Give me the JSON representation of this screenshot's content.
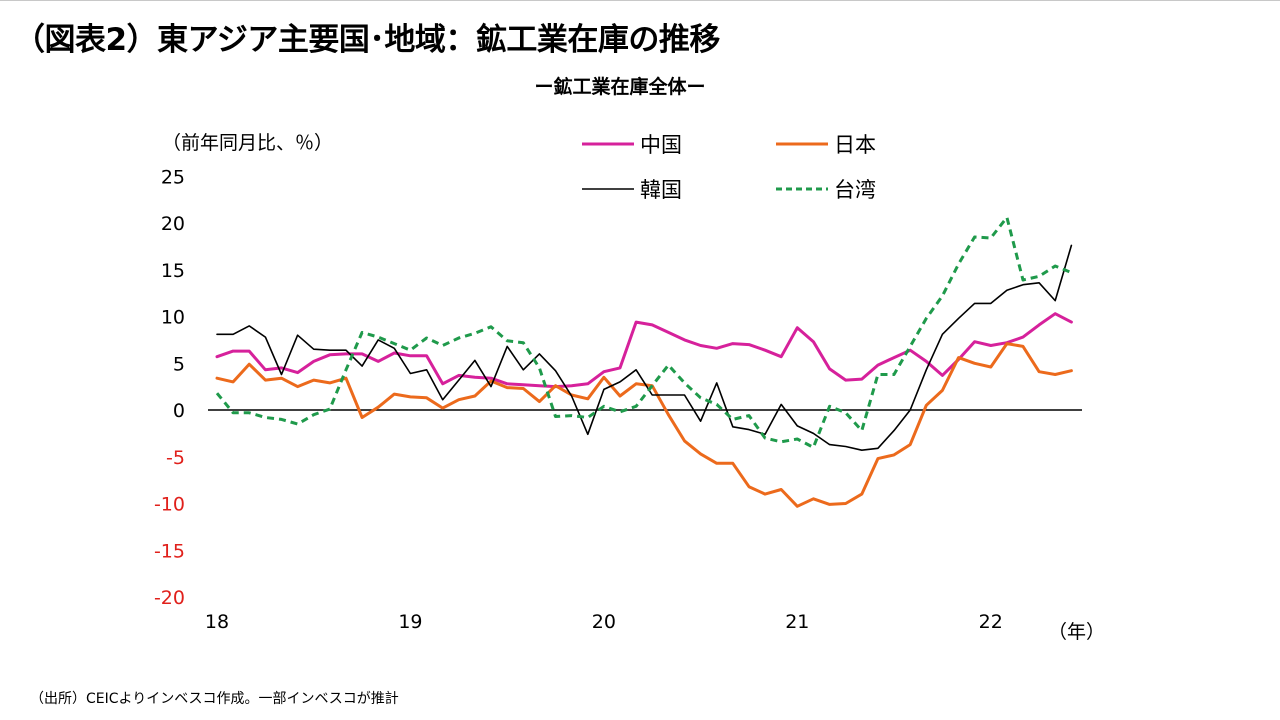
{
  "page": {
    "title": "（図表2）東アジア主要国･地域：鉱工業在庫の推移",
    "footnote": "（出所）CEICよりインベスコ作成。一部インベスコが推計"
  },
  "chart_data": {
    "type": "line",
    "subtitle": "ー鉱工業在庫全体ー",
    "ylabel": "（前年同月比、％）",
    "xlabel": "（年）",
    "ylim": [
      -20,
      25
    ],
    "yticks": [
      25,
      20,
      15,
      10,
      5,
      0,
      -5,
      -10,
      -15,
      -20
    ],
    "negative_tick_color": "#e0201b",
    "x_tick_labels": [
      "18",
      "19",
      "20",
      "21",
      "22"
    ],
    "x_months": "2018-01 to 2022-08 (monthly)",
    "grid": false,
    "legend_position": "top",
    "series": [
      {
        "name": "中国",
        "color": "#d6219b",
        "style": "solid",
        "values": [
          5.7,
          6.3,
          6.3,
          4.3,
          4.5,
          4.0,
          5.2,
          5.9,
          6.0,
          6.0,
          5.2,
          6.1,
          5.8,
          5.8,
          2.8,
          3.7,
          3.5,
          3.4,
          2.8,
          2.7,
          2.6,
          2.5,
          2.6,
          2.8,
          4.1,
          4.5,
          9.4,
          9.1,
          8.3,
          7.5,
          6.9,
          6.6,
          7.1,
          7.0,
          6.4,
          5.7,
          8.8,
          7.3,
          4.4,
          3.2,
          3.3,
          4.8,
          5.6,
          6.4,
          5.2,
          3.7,
          5.4,
          7.3,
          6.9,
          7.2,
          7.8,
          9.1,
          10.3,
          9.4,
          null,
          null
        ]
      },
      {
        "name": "日本",
        "color": "#ec6a1c",
        "style": "solid",
        "values": [
          3.4,
          3.0,
          4.9,
          3.2,
          3.4,
          2.5,
          3.2,
          2.9,
          3.4,
          -0.8,
          0.3,
          1.7,
          1.4,
          1.3,
          0.2,
          1.1,
          1.5,
          3.1,
          2.4,
          2.3,
          0.9,
          2.6,
          1.6,
          1.2,
          3.5,
          1.5,
          2.8,
          2.6,
          -0.5,
          -3.3,
          -4.7,
          -5.7,
          -5.7,
          -8.2,
          -9.0,
          -8.5,
          -10.3,
          -9.5,
          -10.1,
          -10.0,
          -9.0,
          -5.2,
          -4.8,
          -3.7,
          0.5,
          2.1,
          5.6,
          5.0,
          4.6,
          7.1,
          6.8,
          4.1,
          3.8,
          4.2,
          null,
          null
        ]
      },
      {
        "name": "韓国",
        "color": "#000000",
        "style": "solid",
        "values": [
          8.1,
          8.1,
          9.0,
          7.8,
          3.8,
          8.0,
          6.5,
          6.4,
          6.4,
          4.7,
          7.5,
          6.6,
          3.9,
          4.3,
          1.1,
          3.2,
          5.3,
          2.5,
          6.8,
          4.3,
          6.0,
          4.2,
          1.5,
          -2.6,
          2.2,
          3.0,
          4.3,
          1.6,
          1.6,
          1.6,
          -1.2,
          2.9,
          -1.8,
          -2.1,
          -2.6,
          0.6,
          -1.7,
          -2.5,
          -3.7,
          -3.9,
          -4.3,
          -4.1,
          -2.2,
          0.0,
          4.3,
          8.1,
          9.8,
          11.4,
          11.4,
          12.8,
          13.4,
          13.6,
          11.7,
          17.6,
          null,
          null
        ]
      },
      {
        "name": "台湾",
        "color": "#1f9a4b",
        "style": "dashed",
        "values": [
          1.8,
          -0.3,
          -0.3,
          -0.8,
          -1.0,
          -1.5,
          -0.5,
          0.1,
          4.3,
          8.3,
          7.8,
          7.1,
          6.4,
          7.7,
          6.9,
          7.7,
          8.2,
          8.9,
          7.4,
          7.2,
          4.5,
          -0.7,
          -0.6,
          -0.8,
          0.4,
          -0.2,
          0.4,
          2.6,
          4.8,
          2.9,
          1.3,
          0.6,
          -1.0,
          -0.6,
          -3.0,
          -3.4,
          -3.1,
          -4.0,
          0.4,
          -0.3,
          -2.2,
          3.8,
          3.8,
          6.8,
          9.8,
          12.2,
          15.6,
          18.5,
          18.4,
          20.6,
          13.9,
          14.3,
          15.4,
          14.7,
          null,
          null
        ]
      }
    ]
  }
}
